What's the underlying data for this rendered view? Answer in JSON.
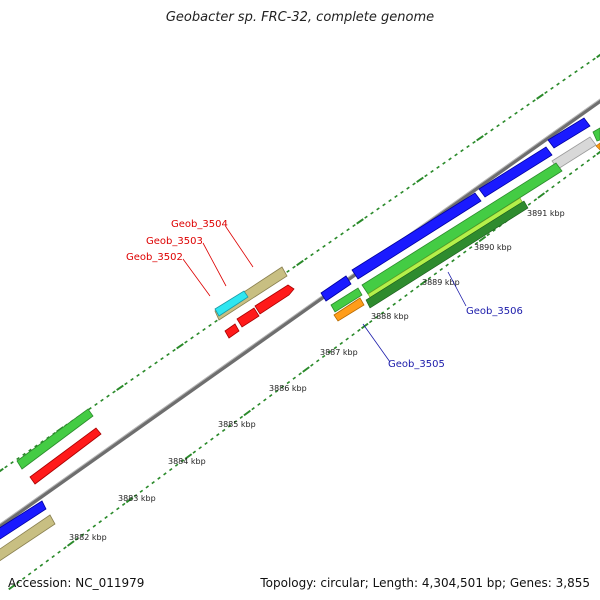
{
  "title": "Geobacter sp. FRC-32, complete genome",
  "footer": {
    "accession": "Accession: NC_011979",
    "summary": "Topology: circular; Length: 4,304,501 bp; Genes: 3,855"
  },
  "scale_labels": [
    "3882 kbp",
    "3883 kbp",
    "3884 kbp",
    "3885 kbp",
    "3886 kbp",
    "3887 kbp",
    "3888 kbp",
    "3889 kbp",
    "3890 kbp",
    "3891 kbp"
  ],
  "gene_labels": {
    "geob_3502": "Geob_3502",
    "geob_3503": "Geob_3503",
    "geob_3504": "Geob_3504",
    "geob_3505": "Geob_3505",
    "geob_3506": "Geob_3506"
  },
  "colors": {
    "backbone": "#7f7f7f",
    "blue": "#1a1aff",
    "green": "#44cc44",
    "red": "#ff1a1a",
    "khaki": "#c8bf82",
    "cyan": "#2ee6f0",
    "orange": "#ff9d1a",
    "lime": "#b4f04a",
    "darkgreen": "#2e8b2e",
    "gray": "#d8d8d8",
    "tick": "#2a8a2a",
    "label_red": "#dd0000",
    "label_blue": "#1a1aaa"
  }
}
